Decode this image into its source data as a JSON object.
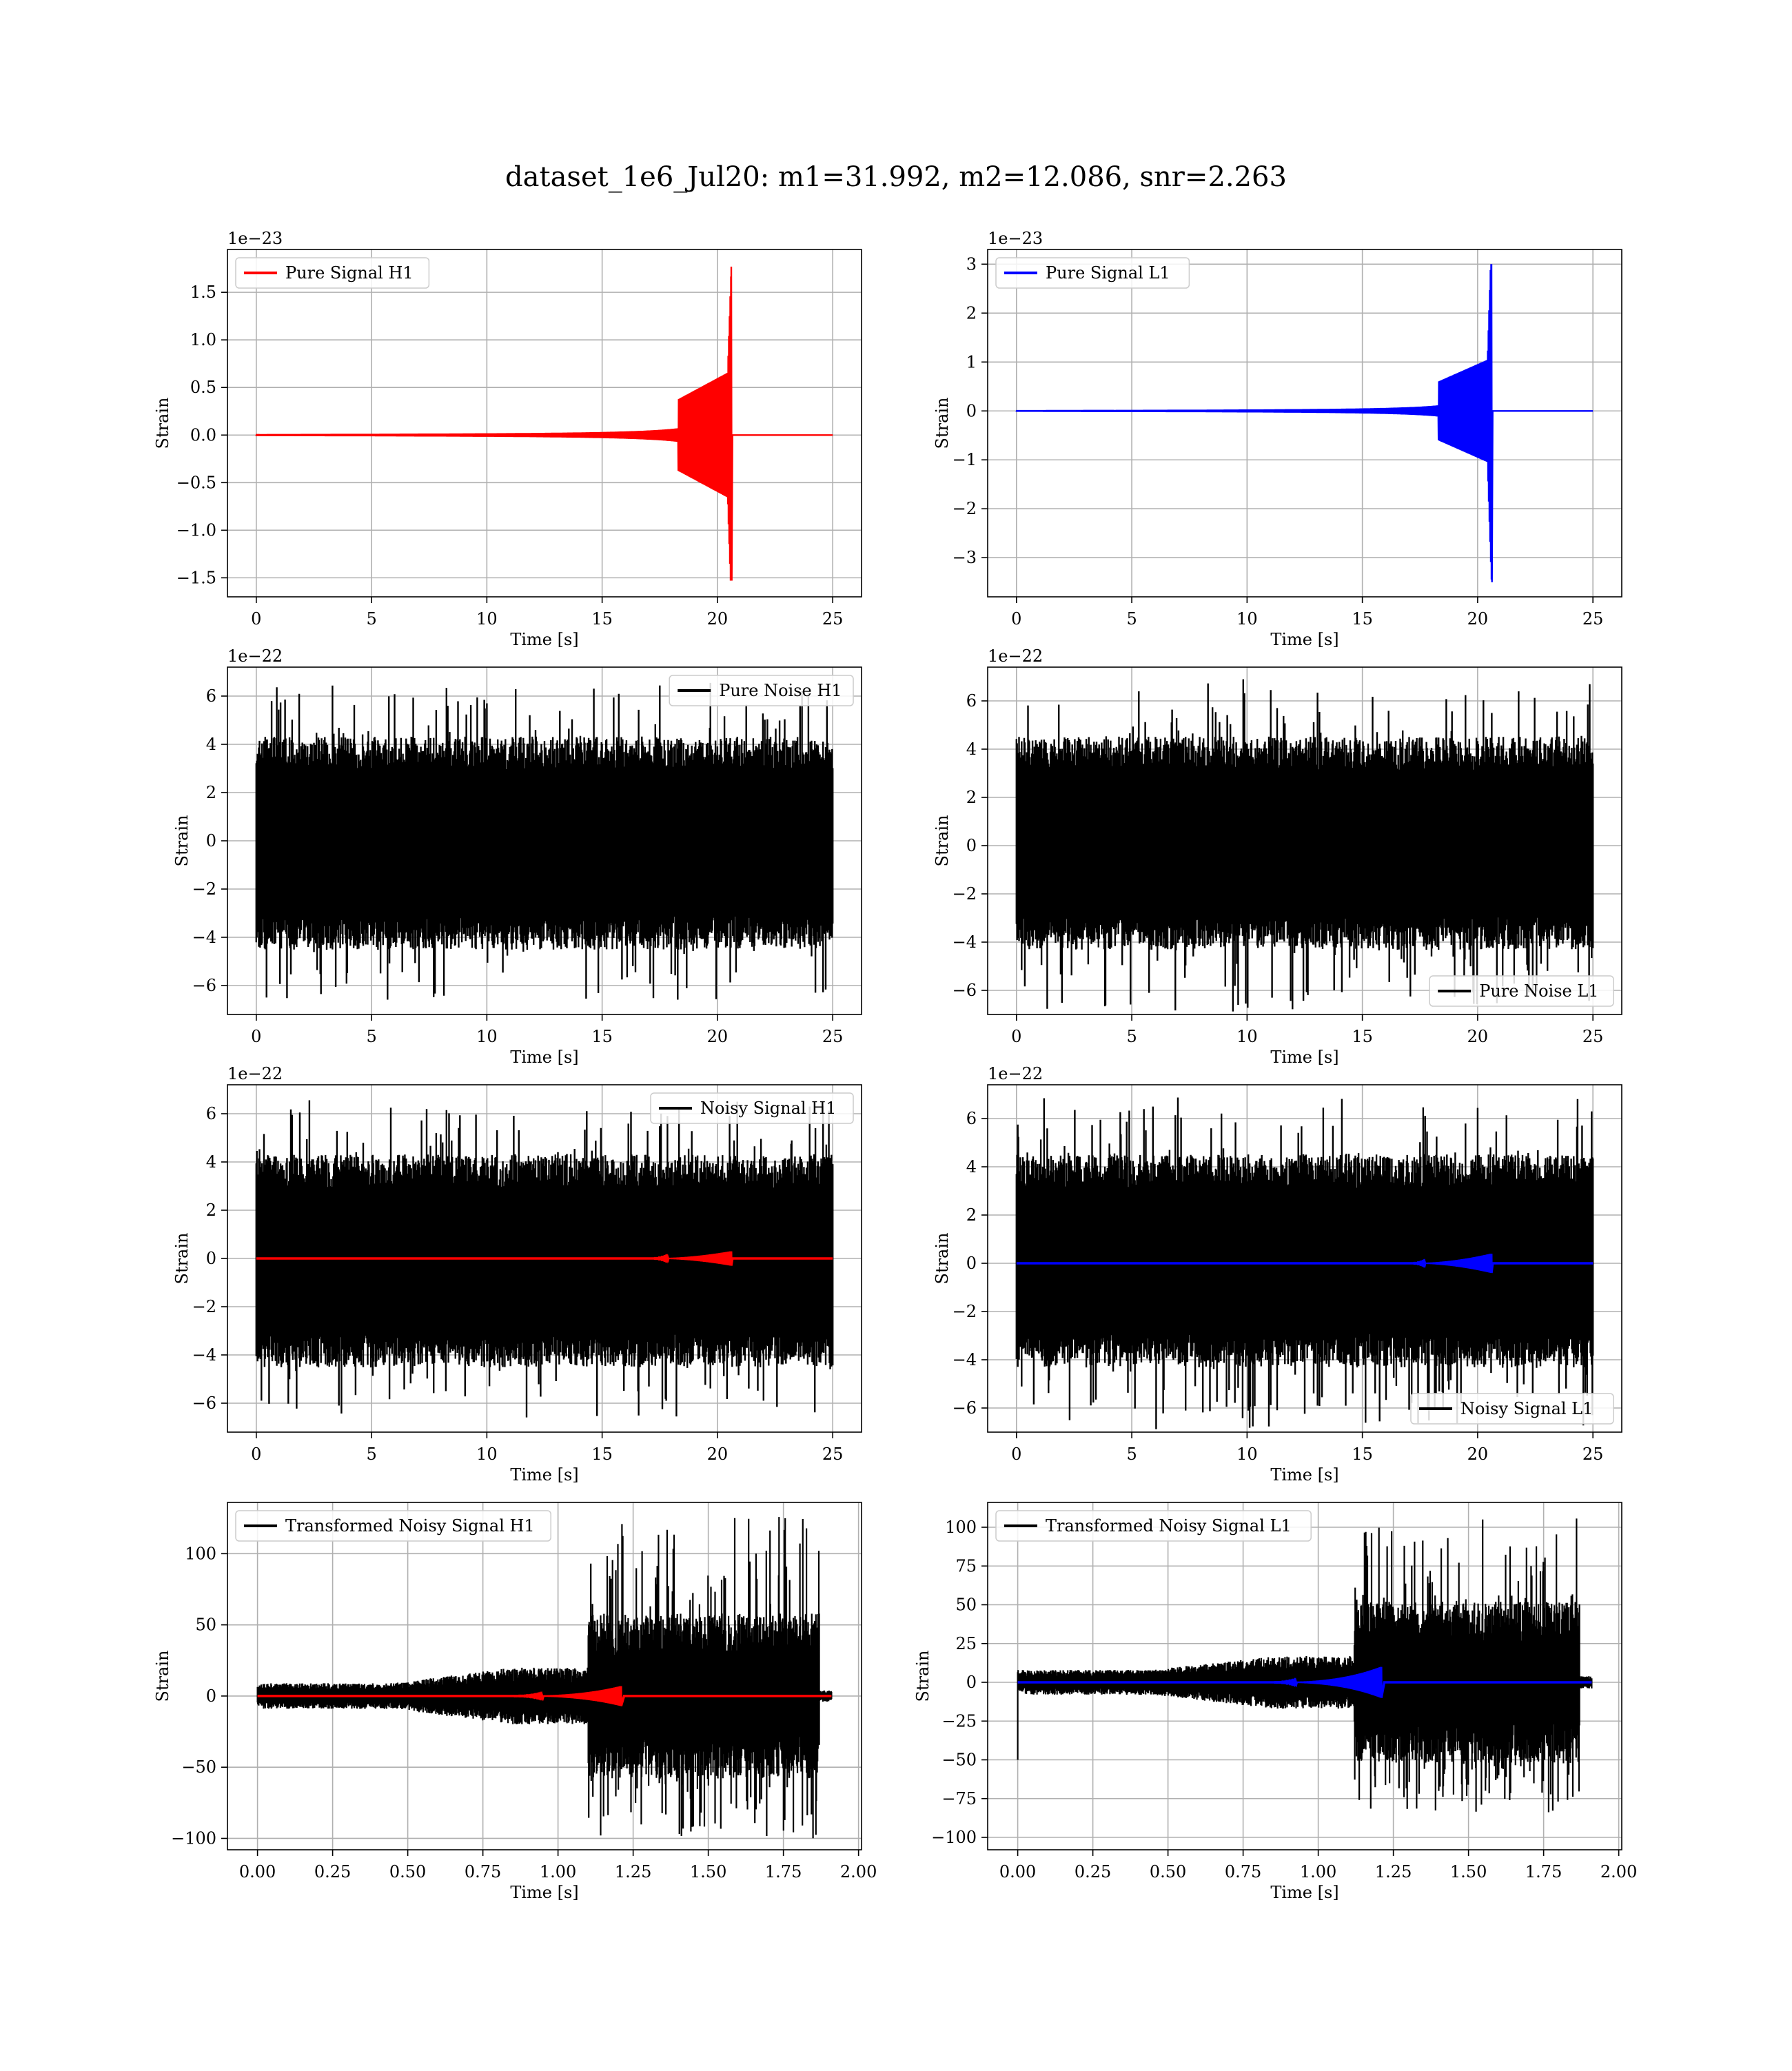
{
  "figure": {
    "title": "dataset_1e6_Jul20: m1=31.992, m2=12.086, snr=2.263"
  },
  "chart_data": [
    {
      "type": "line",
      "panel": "pure-signal-h1",
      "xlabel": "Time [s]",
      "ylabel": "Strain",
      "offset_label": "1e−23",
      "xlim": [
        -1.25,
        26.25
      ],
      "ylim": [
        -1.7,
        1.95
      ],
      "xticks": [
        0,
        5,
        10,
        15,
        20,
        25
      ],
      "xtick_labels": [
        "0",
        "5",
        "10",
        "15",
        "20",
        "25"
      ],
      "yticks": [
        -1.5,
        -1.0,
        -0.5,
        0.0,
        0.5,
        1.0,
        1.5
      ],
      "ytick_labels": [
        "−1.5",
        "−1.0",
        "−0.5",
        "0.0",
        "0.5",
        "1.0",
        "1.5"
      ],
      "grid": true,
      "legend_position": "upper-left",
      "series": [
        {
          "name": "Pure Signal H1",
          "color": "#ff0000",
          "kind": "chirp",
          "t_start": 0,
          "t_merge": 20.6,
          "t_end": 25,
          "peak_pos": 1.77,
          "peak_neg": -1.53,
          "plateau": 0.5,
          "plateau_start": 18.3
        }
      ]
    },
    {
      "type": "line",
      "panel": "pure-signal-l1",
      "xlabel": "Time [s]",
      "ylabel": "Strain",
      "offset_label": "1e−23",
      "xlim": [
        -1.25,
        26.25
      ],
      "ylim": [
        -3.8,
        3.3
      ],
      "xticks": [
        0,
        5,
        10,
        15,
        20,
        25
      ],
      "xtick_labels": [
        "0",
        "5",
        "10",
        "15",
        "20",
        "25"
      ],
      "yticks": [
        -3,
        -2,
        -1,
        0,
        1,
        2,
        3
      ],
      "ytick_labels": [
        "−3",
        "−2",
        "−1",
        "0",
        "1",
        "2",
        "3"
      ],
      "grid": true,
      "legend_position": "upper-left",
      "series": [
        {
          "name": "Pure Signal L1",
          "color": "#0000ff",
          "kind": "chirp",
          "t_start": 0,
          "t_merge": 20.6,
          "t_end": 25,
          "peak_pos": 3.0,
          "peak_neg": -3.5,
          "plateau": 0.8,
          "plateau_start": 18.3
        }
      ]
    },
    {
      "type": "line",
      "panel": "pure-noise-h1",
      "xlabel": "Time [s]",
      "ylabel": "Strain",
      "offset_label": "1e−22",
      "xlim": [
        -1.25,
        26.25
      ],
      "ylim": [
        -7.2,
        7.2
      ],
      "xticks": [
        0,
        5,
        10,
        15,
        20,
        25
      ],
      "xtick_labels": [
        "0",
        "5",
        "10",
        "15",
        "20",
        "25"
      ],
      "yticks": [
        -6,
        -4,
        -2,
        0,
        2,
        4,
        6
      ],
      "ytick_labels": [
        "−6",
        "−4",
        "−2",
        "0",
        "2",
        "4",
        "6"
      ],
      "grid": true,
      "legend_position": "upper-right",
      "series": [
        {
          "name": "Pure Noise H1",
          "color": "#000000",
          "kind": "noise",
          "t_start": 0,
          "t_end": 25,
          "core_hi": 3.2,
          "core_lo": -3.4,
          "env_mean": 4.2,
          "env_max": 6.6
        }
      ]
    },
    {
      "type": "line",
      "panel": "pure-noise-l1",
      "xlabel": "Time [s]",
      "ylabel": "Strain",
      "offset_label": "1e−22",
      "xlim": [
        -1.25,
        26.25
      ],
      "ylim": [
        -7.0,
        7.4
      ],
      "xticks": [
        0,
        5,
        10,
        15,
        20,
        25
      ],
      "xtick_labels": [
        "0",
        "5",
        "10",
        "15",
        "20",
        "25"
      ],
      "yticks": [
        -6,
        -4,
        -2,
        0,
        2,
        4,
        6
      ],
      "ytick_labels": [
        "−6",
        "−4",
        "−2",
        "0",
        "2",
        "4",
        "6"
      ],
      "grid": true,
      "legend_position": "lower-right",
      "series": [
        {
          "name": "Pure Noise L1",
          "color": "#000000",
          "kind": "noise",
          "t_start": 0,
          "t_end": 25,
          "core_hi": 3.4,
          "core_lo": -3.2,
          "env_mean": 4.3,
          "env_max": 6.9
        }
      ]
    },
    {
      "type": "line",
      "panel": "noisy-signal-h1",
      "xlabel": "Time [s]",
      "ylabel": "Strain",
      "offset_label": "1e−22",
      "xlim": [
        -1.25,
        26.25
      ],
      "ylim": [
        -7.2,
        7.2
      ],
      "xticks": [
        0,
        5,
        10,
        15,
        20,
        25
      ],
      "xtick_labels": [
        "0",
        "5",
        "10",
        "15",
        "20",
        "25"
      ],
      "yticks": [
        -6,
        -4,
        -2,
        0,
        2,
        4,
        6
      ],
      "ytick_labels": [
        "−6",
        "−4",
        "−2",
        "0",
        "2",
        "4",
        "6"
      ],
      "grid": true,
      "legend_position": "upper-right",
      "series": [
        {
          "name": "Noisy Signal H1",
          "color": "#000000",
          "kind": "noise",
          "t_start": 0,
          "t_end": 25,
          "core_hi": 3.2,
          "core_lo": -3.4,
          "env_mean": 4.2,
          "env_max": 6.6
        },
        {
          "name": "",
          "color": "#ff0000",
          "kind": "small-chirp",
          "t_start": 0,
          "t_merge": 20.6,
          "t_end": 25,
          "peak": 0.3
        }
      ]
    },
    {
      "type": "line",
      "panel": "noisy-signal-l1",
      "xlabel": "Time [s]",
      "ylabel": "Strain",
      "offset_label": "1e−22",
      "xlim": [
        -1.25,
        26.25
      ],
      "ylim": [
        -7.0,
        7.4
      ],
      "xticks": [
        0,
        5,
        10,
        15,
        20,
        25
      ],
      "xtick_labels": [
        "0",
        "5",
        "10",
        "15",
        "20",
        "25"
      ],
      "yticks": [
        -6,
        -4,
        -2,
        0,
        2,
        4,
        6
      ],
      "ytick_labels": [
        "−6",
        "−4",
        "−2",
        "0",
        "2",
        "4",
        "6"
      ],
      "grid": true,
      "legend_position": "lower-right",
      "series": [
        {
          "name": "Noisy Signal L1",
          "color": "#000000",
          "kind": "noise",
          "t_start": 0,
          "t_end": 25,
          "core_hi": 3.4,
          "core_lo": -3.2,
          "env_mean": 4.3,
          "env_max": 6.9
        },
        {
          "name": "",
          "color": "#0000ff",
          "kind": "small-chirp",
          "t_start": 0,
          "t_merge": 20.6,
          "t_end": 25,
          "peak": 0.4
        }
      ]
    },
    {
      "type": "line",
      "panel": "transformed-noisy-signal-h1",
      "xlabel": "Time [s]",
      "ylabel": "Strain",
      "offset_label": "",
      "xlim": [
        -0.1,
        2.01
      ],
      "ylim": [
        -108,
        136
      ],
      "xticks": [
        0.0,
        0.25,
        0.5,
        0.75,
        1.0,
        1.25,
        1.5,
        1.75,
        2.0
      ],
      "xtick_labels": [
        "0.00",
        "0.25",
        "0.50",
        "0.75",
        "1.00",
        "1.25",
        "1.50",
        "1.75",
        "2.00"
      ],
      "yticks": [
        -100,
        -50,
        0,
        50,
        100
      ],
      "ytick_labels": [
        "−100",
        "−50",
        "0",
        "50",
        "100"
      ],
      "grid": true,
      "legend_position": "upper-left",
      "series": [
        {
          "name": "Transformed Noisy Signal H1",
          "color": "#000000",
          "kind": "transformed-noise",
          "t_start": 0,
          "t_end": 1.91,
          "t_burst": 1.1,
          "t_cut": 1.87,
          "early_amp": 9,
          "mid_amp": 20,
          "burst_amp": 58,
          "burst_max": 126
        },
        {
          "name": "",
          "color": "#ff0000",
          "kind": "transformed-chirp",
          "t_start": 0,
          "t_merge": 1.21,
          "t_end": 1.91,
          "peak": 7
        }
      ]
    },
    {
      "type": "line",
      "panel": "transformed-noisy-signal-l1",
      "xlabel": "Time [s]",
      "ylabel": "Strain",
      "offset_label": "",
      "xlim": [
        -0.1,
        2.01
      ],
      "ylim": [
        -108,
        116
      ],
      "xticks": [
        0.0,
        0.25,
        0.5,
        0.75,
        1.0,
        1.25,
        1.5,
        1.75,
        2.0
      ],
      "xtick_labels": [
        "0.00",
        "0.25",
        "0.50",
        "0.75",
        "1.00",
        "1.25",
        "1.50",
        "1.75",
        "2.00"
      ],
      "yticks": [
        -100,
        -75,
        -50,
        -25,
        0,
        25,
        50,
        75,
        100
      ],
      "ytick_labels": [
        "−100",
        "−75",
        "−50",
        "−25",
        "0",
        "25",
        "50",
        "75",
        "100"
      ],
      "grid": true,
      "legend_position": "upper-left",
      "series": [
        {
          "name": "Transformed Noisy Signal L1",
          "color": "#000000",
          "kind": "transformed-noise",
          "t_start": 0,
          "t_end": 1.91,
          "t_burst": 1.12,
          "t_cut": 1.87,
          "early_amp": 8,
          "mid_amp": 17,
          "burst_amp": 52,
          "burst_max": 106,
          "spike_start": -50
        },
        {
          "name": "",
          "color": "#0000ff",
          "kind": "transformed-chirp",
          "t_start": 0,
          "t_merge": 1.21,
          "t_end": 1.91,
          "peak": 10
        }
      ]
    }
  ]
}
